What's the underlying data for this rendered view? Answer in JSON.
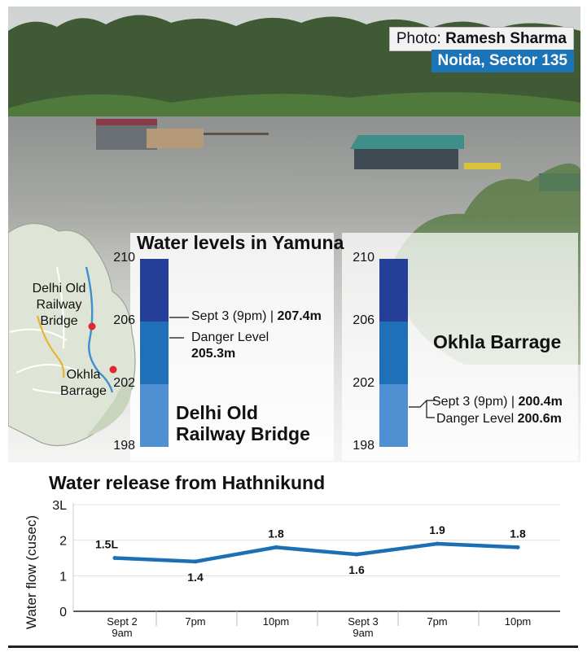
{
  "photo": {
    "credit_label": "Photo: ",
    "credit_name": "Ramesh Sharma",
    "location": "Noida, Sector 135"
  },
  "map": {
    "label_1": "Delhi Old",
    "label_2": "Railway",
    "label_3": "Bridge",
    "label_4": "Okhla",
    "label_5": "Barrage",
    "marker_color": "#e0272f"
  },
  "levels": {
    "title": "Water levels in Yamuna",
    "delhi": {
      "name_line1": "Delhi Old",
      "name_line2": "Railway Bridge",
      "ann1_label": "Sept 3 (9pm) | ",
      "ann1_value": "207.4m",
      "ann2_label": "Danger Level",
      "ann2_value": "205.3m"
    },
    "okhla": {
      "name": "Okhla Barrage",
      "ann1_label": "Sept 3 (9pm) | ",
      "ann1_value": "200.4m",
      "ann2_label": "Danger Level ",
      "ann2_value": "200.6m"
    }
  },
  "chart_data": [
    {
      "type": "bar",
      "title": "Water levels in Yamuna",
      "ylim": [
        198,
        210
      ],
      "yticks": [
        "210",
        "206",
        "202",
        "198"
      ],
      "band_colors": [
        "#233f98",
        "#1f70b8",
        "#4f90d2"
      ],
      "series": [
        {
          "name": "Delhi Old Railway Bridge",
          "sept3_9pm": 207.4,
          "danger_level": 205.3
        },
        {
          "name": "Okhla Barrage",
          "sept3_9pm": 200.4,
          "danger_level": 200.6
        }
      ]
    },
    {
      "type": "line",
      "title": "Water release from Hathnikund",
      "ylabel": "Water flow (cusec)",
      "yticks": [
        "3L",
        "2",
        "1",
        "0"
      ],
      "ylim": [
        0,
        3
      ],
      "x": [
        "Sept 2 9am",
        "7pm",
        "10pm",
        "Sept 3 9am",
        "7pm",
        "10pm"
      ],
      "x_line1": [
        "Sept 2",
        "7pm",
        "10pm",
        "Sept 3",
        "7pm",
        "10pm"
      ],
      "x_line2": [
        "9am",
        "",
        "",
        "9am",
        "",
        ""
      ],
      "values": [
        1.5,
        1.4,
        1.8,
        1.6,
        1.9,
        1.8
      ],
      "data_labels": [
        "1.5L",
        "1.4",
        "1.8",
        "1.6",
        "1.9",
        "1.8"
      ],
      "line_color": "#1b6fb4"
    }
  ]
}
